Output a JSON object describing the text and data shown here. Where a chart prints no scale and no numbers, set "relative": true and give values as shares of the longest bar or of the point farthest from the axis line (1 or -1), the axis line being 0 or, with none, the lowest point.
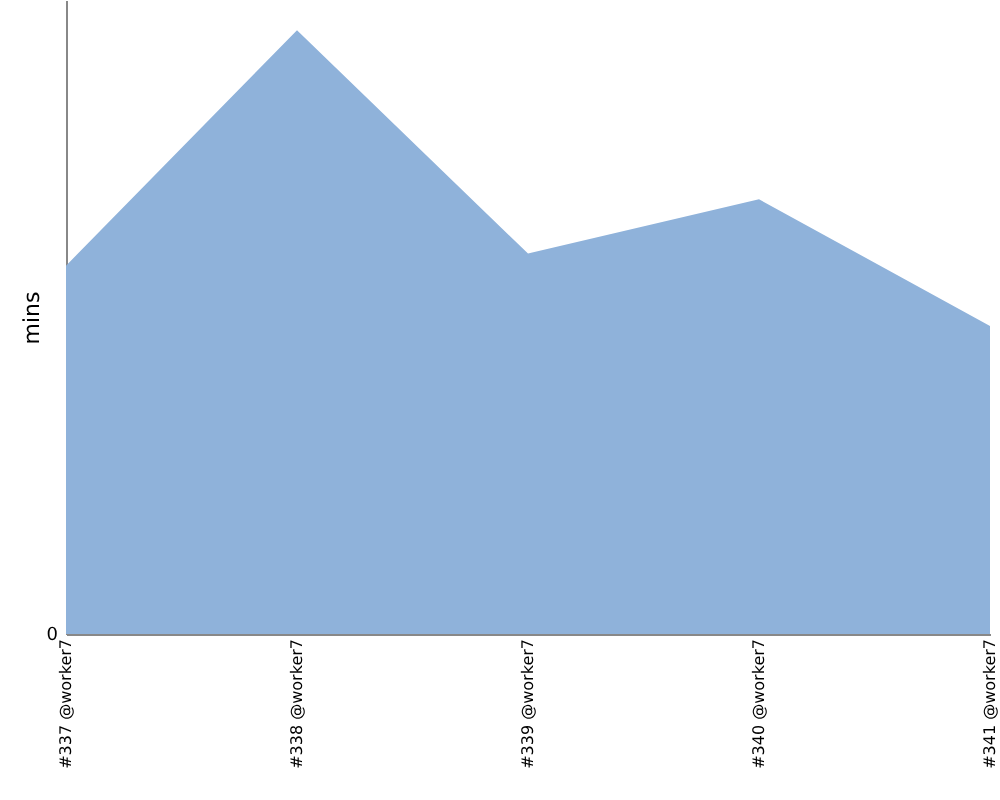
{
  "chart_data": {
    "type": "area",
    "relative": true,
    "ylabel": "mins",
    "categories": [
      "#337 @worker7",
      "#338 @worker7",
      "#339 @worker7",
      "#340 @worker7",
      "#341 @worker7"
    ],
    "series": [
      {
        "color": "#8fb2da",
        "values": [
          0.61,
          1.0,
          0.63,
          0.72,
          0.51
        ]
      }
    ],
    "annotations": [
      "0"
    ],
    "grid": false
  }
}
